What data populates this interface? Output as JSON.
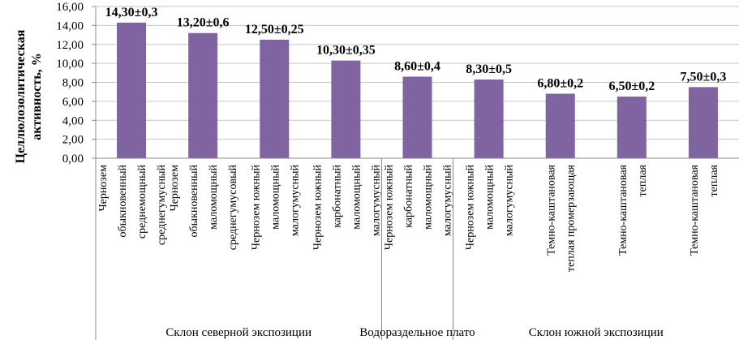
{
  "chart_data": {
    "type": "bar",
    "ylabel_lines": [
      "Целлюлозолитическая",
      "активность, %"
    ],
    "ylim": [
      0,
      16
    ],
    "yticks": [
      "0,00",
      "2,00",
      "4,00",
      "6,00",
      "8,00",
      "10,00",
      "12,00",
      "14,00",
      "16,00"
    ],
    "bar_color": "#8064a2",
    "bars": [
      {
        "value": 14.3,
        "label": "14,30±0,3",
        "category_lines": [
          "Чернозем",
          "обыкновенный",
          "среднемощный",
          "среднегумусный"
        ]
      },
      {
        "value": 13.2,
        "label": "13,20±0,6",
        "category_lines": [
          "Чернозем",
          "обыкновенный",
          "маломощный",
          "среднегумусовый"
        ]
      },
      {
        "value": 12.5,
        "label": "12,50±0,25",
        "category_lines": [
          "Чернозем южный",
          "маломощный",
          "малогумусный"
        ]
      },
      {
        "value": 10.3,
        "label": "10,30±0,35",
        "category_lines": [
          "Чернозем южный",
          "карбонатный",
          "маломощный",
          "малогумусный"
        ]
      },
      {
        "value": 8.6,
        "label": "8,60±0,4",
        "category_lines": [
          "Чернозем южный",
          "карбонатный",
          "маломощный",
          "малогумусный"
        ]
      },
      {
        "value": 8.3,
        "label": "8,30±0,5",
        "category_lines": [
          "Чернозем южный",
          "маломощный",
          "малогумусный"
        ]
      },
      {
        "value": 6.8,
        "label": "6,80±0,2",
        "category_lines": [
          "Темно-каштановая",
          "теплая промерзающая"
        ]
      },
      {
        "value": 6.5,
        "label": "6,50±0,2",
        "category_lines": [
          "Темно-каштановая",
          "теплая"
        ]
      },
      {
        "value": 7.5,
        "label": "7,50±0,3",
        "category_lines": [
          "Темно-каштановая",
          "теплая"
        ]
      }
    ],
    "groups": [
      {
        "label": "Склон северной экспозиции",
        "start": 0,
        "end": 3
      },
      {
        "label": "Водораздельное плато",
        "start": 4,
        "end": 4
      },
      {
        "label": "Склон южной экспозиции",
        "start": 5,
        "end": 8
      }
    ]
  }
}
